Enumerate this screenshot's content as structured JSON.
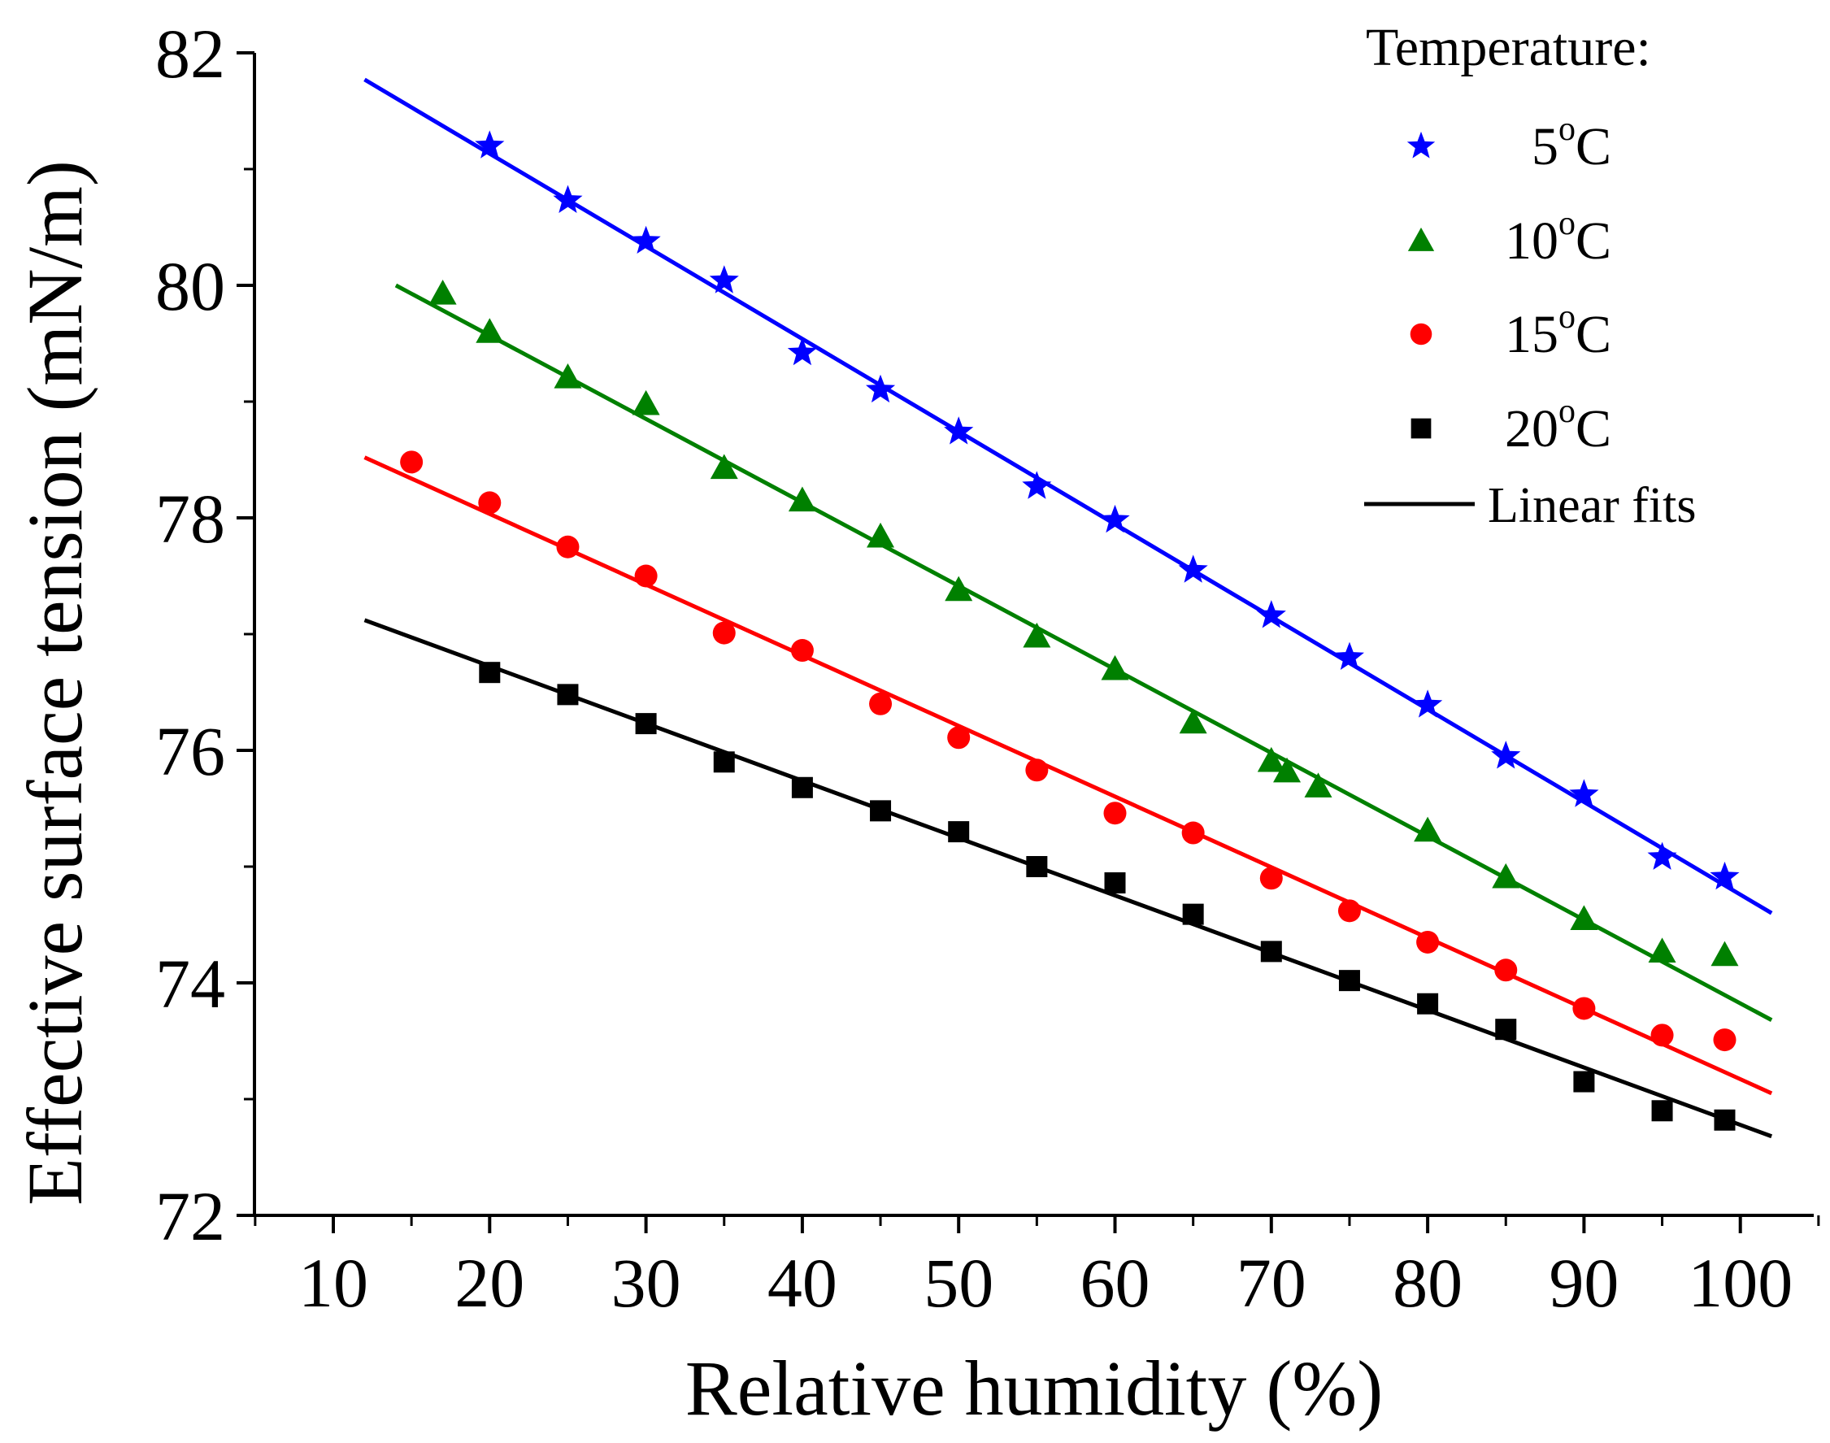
{
  "chart_data": {
    "type": "scatter",
    "title": "",
    "xlabel": "Relative humidity (%)",
    "ylabel": "Effective surface tension (mN/m)",
    "xlim": [
      5,
      105
    ],
    "ylim": [
      72,
      82
    ],
    "x_ticks": [
      10,
      20,
      30,
      40,
      50,
      60,
      70,
      80,
      90,
      100
    ],
    "y_ticks": [
      72,
      74,
      76,
      78,
      80,
      82
    ],
    "x_tick_labels": [
      "10",
      "20",
      "30",
      "40",
      "50",
      "60",
      "70",
      "80",
      "90",
      "100"
    ],
    "y_tick_labels": [
      "72",
      "74",
      "76",
      "78",
      "80",
      "82"
    ],
    "legend": {
      "title": "Temperature:",
      "position": "top-right",
      "fit_label": "Linear fits"
    },
    "series": [
      {
        "name": "5°C",
        "base": "5",
        "sup": "o",
        "unit": "C",
        "marker": "star",
        "color": "#0000ff",
        "x": [
          20,
          25,
          30,
          35,
          40,
          45,
          50,
          55,
          60,
          65,
          70,
          75,
          80,
          85,
          90,
          95,
          99
        ],
        "y": [
          81.2,
          80.73,
          80.38,
          80.04,
          79.42,
          79.1,
          78.74,
          78.27,
          77.98,
          77.55,
          77.16,
          76.8,
          76.39,
          75.95,
          75.62,
          75.08,
          74.91
        ],
        "fit": {
          "x": [
            12,
            102
          ],
          "y": [
            81.77,
            74.6
          ]
        }
      },
      {
        "name": "10°C",
        "base": "10",
        "sup": "o",
        "unit": "C",
        "marker": "triangle",
        "color": "#008000",
        "x": [
          17,
          20,
          25,
          30,
          35,
          40,
          45,
          50,
          55,
          60,
          65,
          70,
          71,
          73,
          80,
          85,
          90,
          95,
          99
        ],
        "y": [
          79.93,
          79.6,
          79.21,
          78.98,
          78.43,
          78.15,
          77.84,
          77.38,
          76.98,
          76.7,
          76.24,
          75.91,
          75.82,
          75.69,
          75.31,
          74.91,
          74.55,
          74.27,
          74.24
        ],
        "fit": {
          "x": [
            14,
            102
          ],
          "y": [
            80.0,
            73.68
          ]
        }
      },
      {
        "name": "15°C",
        "base": "15",
        "sup": "o",
        "unit": "C",
        "marker": "circle",
        "color": "#ff0000",
        "x": [
          15,
          20,
          25,
          30,
          35,
          40,
          45,
          50,
          55,
          60,
          65,
          70,
          75,
          80,
          85,
          90,
          95,
          99
        ],
        "y": [
          78.48,
          78.13,
          77.75,
          77.5,
          77.01,
          76.86,
          76.4,
          76.11,
          75.83,
          75.46,
          75.29,
          74.9,
          74.62,
          74.35,
          74.11,
          73.78,
          73.55,
          73.51
        ],
        "fit": {
          "x": [
            12,
            102
          ],
          "y": [
            78.52,
            73.05
          ]
        }
      },
      {
        "name": "20°C",
        "base": "20",
        "sup": "o",
        "unit": "C",
        "marker": "square",
        "color": "#000000",
        "x": [
          20,
          25,
          30,
          35,
          40,
          45,
          50,
          55,
          60,
          65,
          70,
          75,
          80,
          85,
          90,
          95,
          99
        ],
        "y": [
          76.67,
          76.48,
          76.23,
          75.9,
          75.68,
          75.48,
          75.3,
          75.0,
          74.86,
          74.59,
          74.27,
          74.02,
          73.82,
          73.6,
          73.15,
          72.9,
          72.82
        ],
        "fit": {
          "x": [
            12,
            102
          ],
          "y": [
            77.12,
            72.68
          ]
        }
      }
    ]
  }
}
